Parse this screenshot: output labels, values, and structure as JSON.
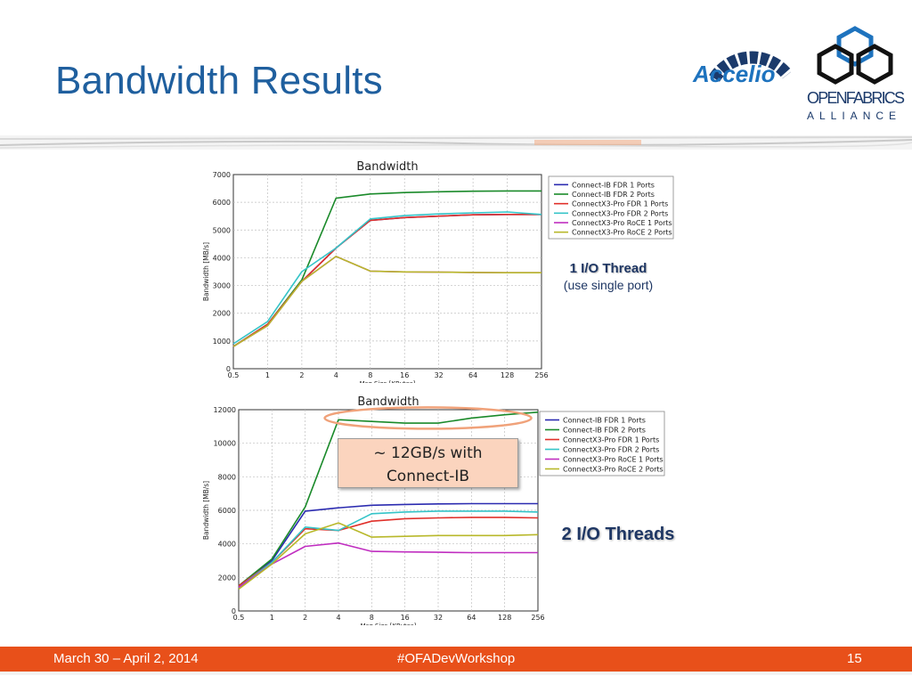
{
  "slide": {
    "title": "Bandwidth Results",
    "logos": {
      "accelio": "Accelio",
      "ofa_line1": "OPENFABRICS",
      "ofa_line2": "ALLIANCE"
    },
    "note_top_title": "1 I/O Thread",
    "note_top_sub": "(use single port)",
    "note_bottom": "2 I/O Threads",
    "callout": [
      "~ 12GB/s with",
      "Connect-IB"
    ],
    "footer": {
      "date": "March 30 – April 2, 2014",
      "hashtag": "#OFADevWorkshop",
      "page": "15"
    }
  },
  "colors": {
    "title": "#1f5f9e",
    "footer": "#e8501a",
    "callout_fill": "#fbd4be",
    "highlight_ellipse": "#f0a27a"
  },
  "chart_data": [
    {
      "type": "line",
      "title": "Bandwidth",
      "xlabel": "Msg Size [KBytes]",
      "ylabel": "Bandwidth [MB/s]",
      "categories": [
        "0.5",
        "1",
        "2",
        "4",
        "8",
        "16",
        "32",
        "64",
        "128",
        "256"
      ],
      "ylim": [
        0,
        7000
      ],
      "yticks": [
        0,
        1000,
        2000,
        3000,
        4000,
        5000,
        6000,
        7000
      ],
      "grid": true,
      "legend": "top-right",
      "series": [
        {
          "name": "Connect-IB FDR 1 Ports",
          "color": "#2b2bb0",
          "values": [
            800,
            1600,
            3150,
            4350,
            5350,
            5450,
            5500,
            5550,
            5560,
            5560
          ]
        },
        {
          "name": "Connect-IB FDR 2 Ports",
          "color": "#1a8a2a",
          "values": [
            800,
            1600,
            3200,
            6150,
            6300,
            6350,
            6380,
            6400,
            6410,
            6410
          ]
        },
        {
          "name": "ConnectX3-Pro FDR 1 Ports",
          "color": "#e0302a",
          "values": [
            800,
            1600,
            3150,
            4350,
            5350,
            5450,
            5500,
            5550,
            5560,
            5560
          ]
        },
        {
          "name": "ConnectX3-Pro FDR 2 Ports",
          "color": "#35c4c8",
          "values": [
            900,
            1700,
            3500,
            4350,
            5400,
            5520,
            5580,
            5620,
            5650,
            5560
          ]
        },
        {
          "name": "ConnectX3-Pro RoCE 1 Ports",
          "color": "#c02ec0",
          "values": [
            800,
            1550,
            3150,
            4050,
            3520,
            3490,
            3480,
            3470,
            3460,
            3460
          ]
        },
        {
          "name": "ConnectX3-Pro RoCE 2 Ports",
          "color": "#b8b82a",
          "values": [
            800,
            1550,
            3150,
            4050,
            3520,
            3490,
            3480,
            3470,
            3460,
            3460
          ]
        }
      ]
    },
    {
      "type": "line",
      "title": "Bandwidth",
      "xlabel": "Msg Size [KBytes]",
      "ylabel": "Bandwidth [MB/s]",
      "categories": [
        "0.5",
        "1",
        "2",
        "4",
        "8",
        "16",
        "32",
        "64",
        "128",
        "256"
      ],
      "ylim": [
        0,
        12000
      ],
      "yticks": [
        0,
        2000,
        4000,
        6000,
        8000,
        10000,
        12000
      ],
      "grid": true,
      "legend": "top-right",
      "series": [
        {
          "name": "Connect-IB FDR 1 Ports",
          "color": "#2b2bb0",
          "values": [
            1500,
            3000,
            5950,
            6150,
            6300,
            6350,
            6380,
            6400,
            6400,
            6400
          ]
        },
        {
          "name": "Connect-IB FDR 2 Ports",
          "color": "#1a8a2a",
          "values": [
            1500,
            3100,
            6200,
            11400,
            11300,
            11200,
            11200,
            11500,
            11700,
            11850
          ]
        },
        {
          "name": "ConnectX3-Pro FDR 1 Ports",
          "color": "#e0302a",
          "values": [
            1500,
            2900,
            4900,
            4800,
            5350,
            5500,
            5550,
            5580,
            5580,
            5550
          ]
        },
        {
          "name": "ConnectX3-Pro FDR 2 Ports",
          "color": "#35c4c8",
          "values": [
            1400,
            2900,
            5000,
            4800,
            5800,
            5900,
            5950,
            5950,
            5950,
            5900
          ]
        },
        {
          "name": "ConnectX3-Pro RoCE 1 Ports",
          "color": "#c02ec0",
          "values": [
            1400,
            2800,
            3850,
            4050,
            3550,
            3520,
            3500,
            3480,
            3480,
            3480
          ]
        },
        {
          "name": "ConnectX3-Pro RoCE 2 Ports",
          "color": "#b8b82a",
          "values": [
            1300,
            2800,
            4600,
            5250,
            4400,
            4450,
            4500,
            4500,
            4500,
            4550
          ]
        }
      ]
    }
  ]
}
